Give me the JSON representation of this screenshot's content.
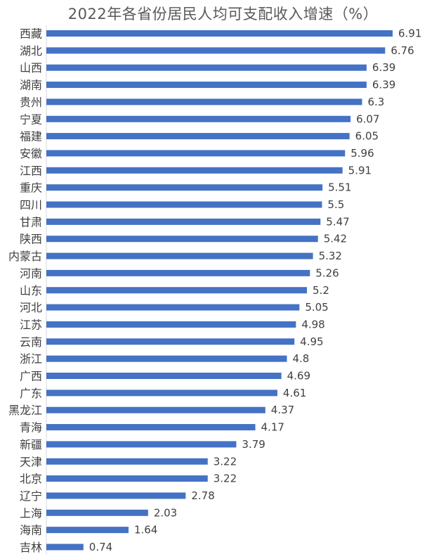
{
  "chart_data": {
    "type": "bar",
    "orientation": "horizontal",
    "title": "2022年各省份居民人均可支配收入增速（%）",
    "categories": [
      "西藏",
      "湖北",
      "山西",
      "湖南",
      "贵州",
      "宁夏",
      "福建",
      "安徽",
      "江西",
      "重庆",
      "四川",
      "甘肃",
      "陕西",
      "内蒙古",
      "河南",
      "山东",
      "河北",
      "江苏",
      "云南",
      "浙江",
      "广西",
      "广东",
      "黑龙江",
      "青海",
      "新疆",
      "天津",
      "北京",
      "辽宁",
      "上海",
      "海南",
      "吉林"
    ],
    "values": [
      6.91,
      6.76,
      6.39,
      6.39,
      6.3,
      6.07,
      6.05,
      5.96,
      5.91,
      5.51,
      5.5,
      5.47,
      5.42,
      5.32,
      5.26,
      5.2,
      5.05,
      4.98,
      4.95,
      4.8,
      4.69,
      4.61,
      4.37,
      4.17,
      3.79,
      3.22,
      3.22,
      2.78,
      2.03,
      1.64,
      0.74
    ],
    "value_labels": [
      "6.91",
      "6.76",
      "6.39",
      "6.39",
      "6.3",
      "6.07",
      "6.05",
      "5.96",
      "5.91",
      "5.51",
      "5.5",
      "5.47",
      "5.42",
      "5.32",
      "5.26",
      "5.2",
      "5.05",
      "4.98",
      "4.95",
      "4.8",
      "4.69",
      "4.61",
      "4.37",
      "4.17",
      "3.79",
      "3.22",
      "3.22",
      "2.78",
      "2.03",
      "1.64",
      "0.74"
    ],
    "xlim": [
      0,
      7
    ],
    "grid": false,
    "legend": "none",
    "bar_color": "#4472C4"
  }
}
